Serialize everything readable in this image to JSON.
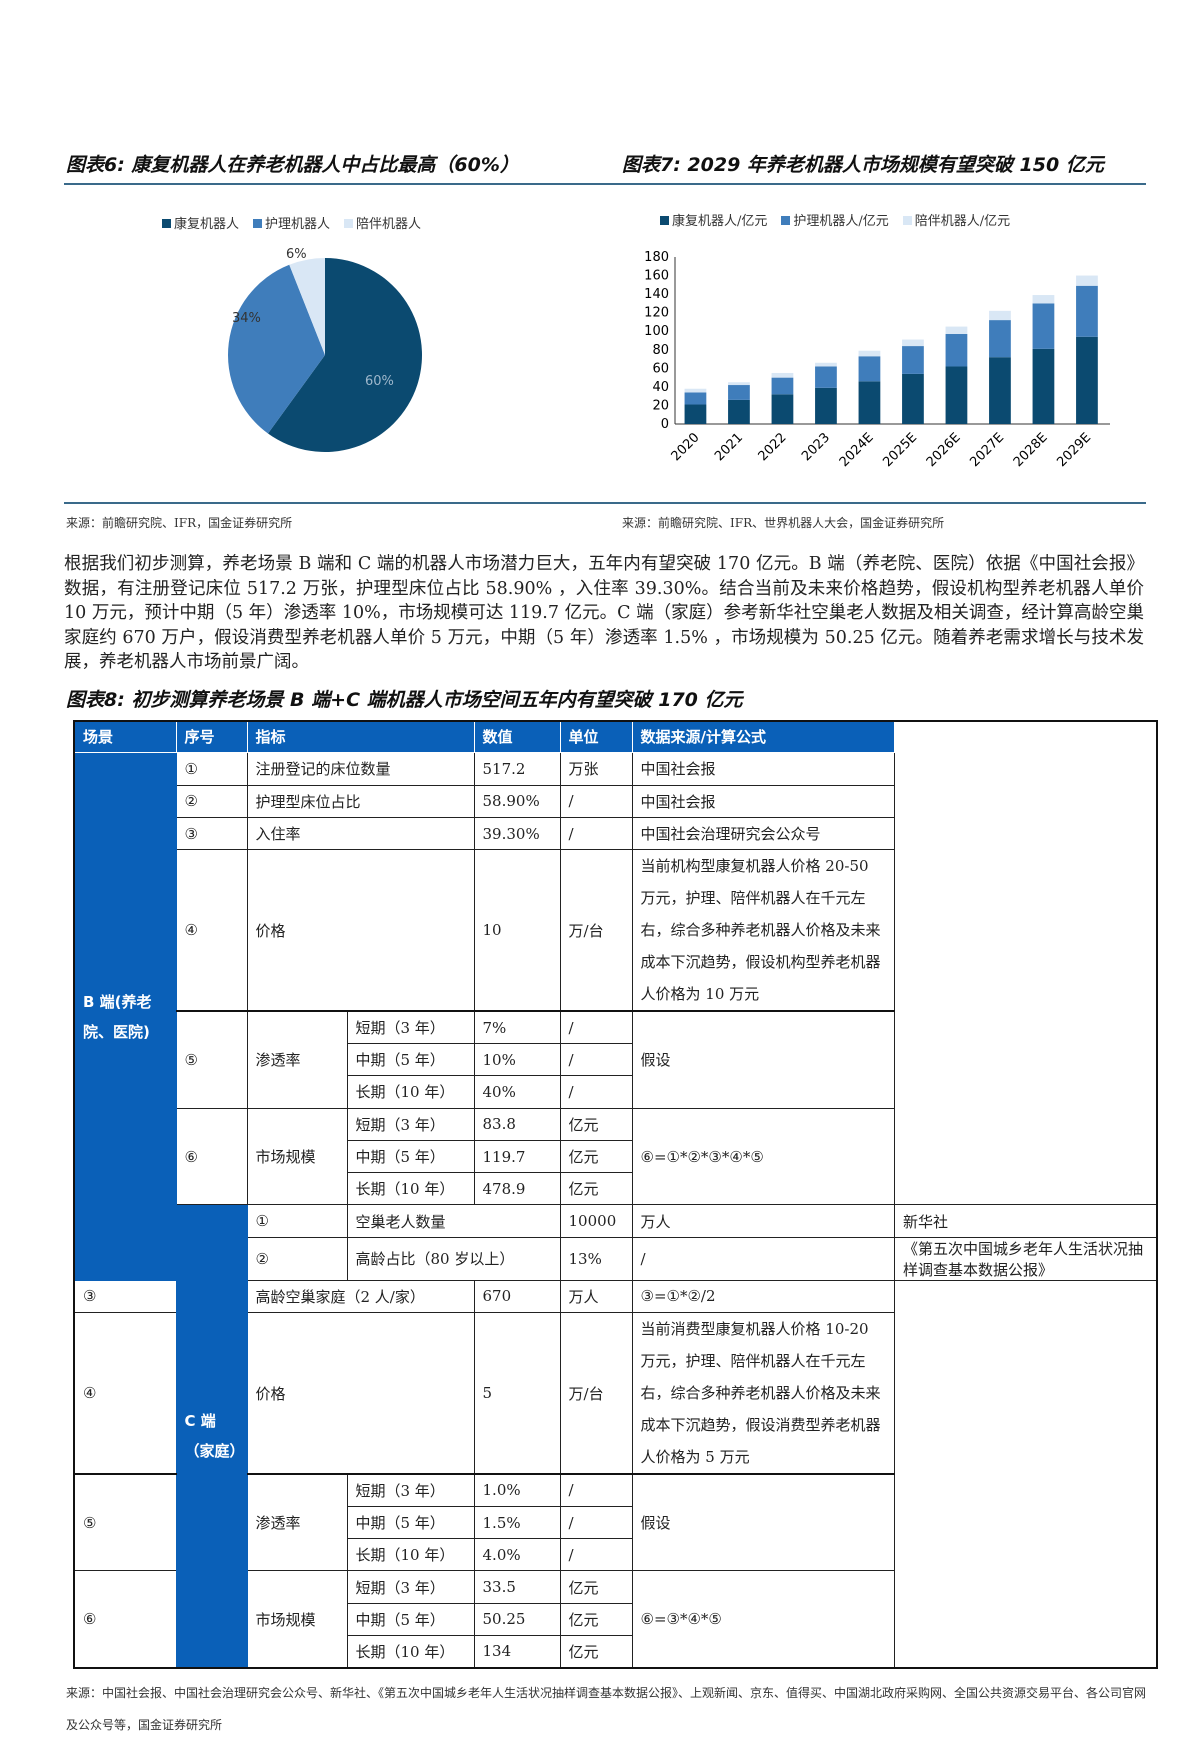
{
  "fig6": {
    "title": "图表6: 康复机器人在养老机器人中占比最高（60%）",
    "source": "来源：前瞻研究院、IFR，国金证券研究所",
    "chart_data": {
      "type": "pie",
      "title": "",
      "legend_position": "top",
      "slices": [
        {
          "name": "康复机器人",
          "value": 60,
          "label": "60%",
          "color": "#0b4a70"
        },
        {
          "name": "护理机器人",
          "value": 34,
          "label": "34%",
          "color": "#3f7dbb"
        },
        {
          "name": "陪伴机器人",
          "value": 6,
          "label": "6%",
          "color": "#d9e7f5"
        }
      ]
    }
  },
  "fig7": {
    "title": "图表7: 2029 年养老机器人市场规模有望突破 150 亿元",
    "source": "来源：前瞻研究院、IFR、世界机器人大会，国金证券研究所",
    "chart_data": {
      "type": "bar",
      "stacked": true,
      "title": "",
      "xlabel": "",
      "ylabel": "",
      "ylim": [
        0,
        180
      ],
      "yticks": [
        0,
        20,
        40,
        60,
        80,
        100,
        120,
        140,
        160,
        180
      ],
      "grid": false,
      "legend_position": "top",
      "categories": [
        "2020",
        "2021",
        "2022",
        "2023",
        "2024E",
        "2025E",
        "2026E",
        "2027E",
        "2028E",
        "2029E"
      ],
      "series": [
        {
          "name": "康复机器人/亿元",
          "color": "#0b4a70",
          "values": [
            21,
            26,
            32,
            39,
            46,
            54,
            62,
            72,
            81,
            94
          ]
        },
        {
          "name": "护理机器人/亿元",
          "color": "#3f7dbb",
          "values": [
            13,
            16,
            18,
            23,
            27,
            30,
            35,
            40,
            49,
            55
          ]
        },
        {
          "name": "陪伴机器人/亿元",
          "color": "#d9e7f5",
          "values": [
            4,
            3,
            5,
            4,
            6,
            7,
            8,
            10,
            9,
            11
          ]
        }
      ]
    }
  },
  "paragraph": "根据我们初步测算，养老场景 B 端和 C 端的机器人市场潜力巨大，五年内有望突破 170 亿元。B 端（养老院、医院）依据《中国社会报》数据，有注册登记床位 517.2 万张，护理型床位占比 58.90% ，入住率 39.30%。结合当前及未来价格趋势，假设机构型养老机器人单价 10 万元，预计中期（5 年）渗透率 10%，市场规模可达 119.7 亿元。C 端（家庭）参考新华社空巢老人数据及相关调查，经计算高龄空巢家庭约 670 万户，假设消费型养老机器人单价 5 万元，中期（5 年）渗透率 1.5% ，市场规模为 50.25 亿元。随着养老需求增长与技术发展，养老机器人市场前景广阔。",
  "fig8": {
    "title": "图表8: 初步测算养老场景 B 端+C 端机器人市场空间五年内有望突破 170 亿元",
    "headers": [
      "场景",
      "序号",
      "指标",
      "数值",
      "单位",
      "数据来源/计算公式"
    ],
    "groups": [
      {
        "label": "B 端(养老院、医院)",
        "rows": [
          [
            "①",
            "注册登记的床位数量",
            "517.2",
            "万张",
            "中国社会报"
          ],
          [
            "②",
            "护理型床位占比",
            "58.90%",
            "/",
            "中国社会报"
          ],
          [
            "③",
            "入住率",
            "39.30%",
            "/",
            "中国社会治理研究会公众号"
          ]
        ],
        "price": [
          "④",
          "价格",
          "10",
          "万/台",
          "当前机构型康复机器人价格 20-50 万元，护理、陪伴机器人在千元左右，综合多种养老机器人价格及未来成本下沉趋势，假设机构型养老机器人价格为 10 万元"
        ],
        "pen": {
          "no": "⑤",
          "name": "渗透率",
          "note": "假设",
          "rows": [
            [
              "短期（3 年）",
              "7%",
              "/"
            ],
            [
              "中期（5 年）",
              "10%",
              "/"
            ],
            [
              "长期（10 年）",
              "40%",
              "/"
            ]
          ]
        },
        "market": {
          "no": "⑥",
          "name": "市场规模",
          "note": "⑥=①*②*③*④*⑤",
          "rows": [
            [
              "短期（3 年）",
              "83.8",
              "亿元"
            ],
            [
              "中期（5 年）",
              "119.7",
              "亿元"
            ],
            [
              "长期（10 年）",
              "478.9",
              "亿元"
            ]
          ]
        }
      },
      {
        "label": "C 端（家庭）",
        "rows": [
          [
            "①",
            "空巢老人数量",
            "10000",
            "万人",
            "新华社"
          ],
          [
            "②",
            "高龄占比（80 岁以上）",
            "13%",
            "/",
            "《第五次中国城乡老年人生活状况抽样调查基本数据公报》"
          ],
          [
            "③",
            "高龄空巢家庭（2 人/家）",
            "670",
            "万人",
            "③=①*②/2"
          ]
        ],
        "price": [
          "④",
          "价格",
          "5",
          "万/台",
          "当前消费型康复机器人价格 10-20 万元，护理、陪伴机器人在千元左右，综合多种养老机器人价格及未来成本下沉趋势，假设消费型养老机器人价格为 5 万元"
        ],
        "pen": {
          "no": "⑤",
          "name": "渗透率",
          "note": "假设",
          "rows": [
            [
              "短期（3 年）",
              "1.0%",
              "/"
            ],
            [
              "中期（5 年）",
              "1.5%",
              "/"
            ],
            [
              "长期（10 年）",
              "4.0%",
              "/"
            ]
          ]
        },
        "market": {
          "no": "⑥",
          "name": "市场规模",
          "note": "⑥=③*④*⑤",
          "rows": [
            [
              "短期（3 年）",
              "33.5",
              "亿元"
            ],
            [
              "中期（5 年）",
              "50.25",
              "亿元"
            ],
            [
              "长期（10 年）",
              "134",
              "亿元"
            ]
          ]
        }
      }
    ],
    "source": "来源：中国社会报、中国社会治理研究会公众号、新华社、《第五次中国城乡老年人生活状况抽样调查基本数据公报》、上观新闻、京东、值得买、中国湖北政府采购网、全国公共资源交易平台、各公司官网及公众号等，国金证券研究所"
  }
}
